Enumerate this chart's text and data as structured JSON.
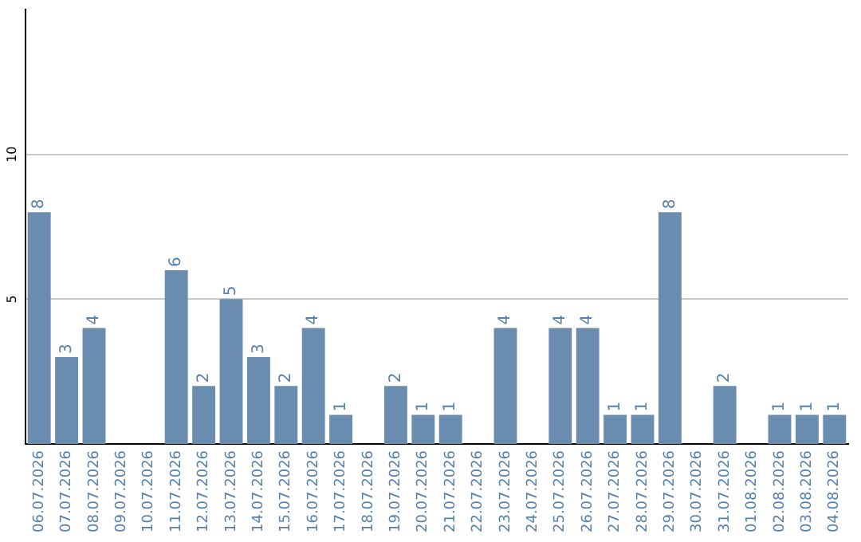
{
  "chart_data": {
    "type": "bar",
    "categories": [
      "06.07.2026",
      "07.07.2026",
      "08.07.2026",
      "09.07.2026",
      "10.07.2026",
      "11.07.2026",
      "12.07.2026",
      "13.07.2026",
      "14.07.2026",
      "15.07.2026",
      "16.07.2026",
      "17.07.2026",
      "18.07.2026",
      "19.07.2026",
      "20.07.2026",
      "21.07.2026",
      "22.07.2026",
      "23.07.2026",
      "24.07.2026",
      "25.07.2026",
      "26.07.2026",
      "27.07.2026",
      "28.07.2026",
      "29.07.2026",
      "30.07.2026",
      "31.07.2026",
      "01.08.2026",
      "02.08.2026",
      "03.08.2026",
      "04.08.2026"
    ],
    "values": [
      8,
      3,
      4,
      0,
      0,
      6,
      2,
      5,
      3,
      2,
      4,
      1,
      0,
      2,
      1,
      1,
      0,
      4,
      0,
      4,
      4,
      1,
      1,
      8,
      0,
      2,
      0,
      1,
      1,
      1
    ],
    "value_labels": [
      "8",
      "3",
      "4",
      null,
      null,
      "6",
      "2",
      "5",
      "3",
      "2",
      "4",
      "1",
      null,
      "2",
      "1",
      "1",
      null,
      "4",
      null,
      "4",
      "4",
      "1",
      "1",
      "8",
      null,
      "2",
      null,
      "1",
      "1",
      "1"
    ],
    "color": "#6a8caf",
    "ylim": [
      0,
      15
    ],
    "yticks": [
      5,
      10
    ],
    "grid": "y"
  }
}
